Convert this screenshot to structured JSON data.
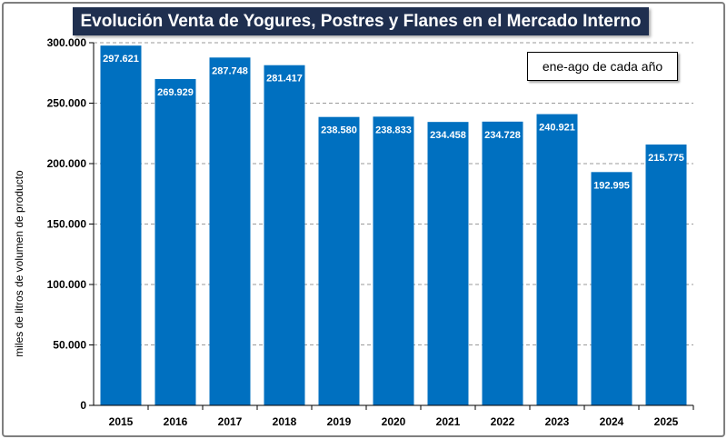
{
  "chart_data": {
    "type": "bar",
    "title": "Evolución Venta de Yogures, Postres y Flanes en el Mercado Interno",
    "period_note": "ene-ago de cada año",
    "ylabel": "miles de litros de volumen de producto",
    "xlabel": "",
    "categories": [
      "2015",
      "2016",
      "2017",
      "2018",
      "2019",
      "2020",
      "2021",
      "2022",
      "2023",
      "2024",
      "2025"
    ],
    "values": [
      297621,
      269929,
      287748,
      281417,
      238580,
      238833,
      234458,
      234728,
      240921,
      192995,
      215775
    ],
    "value_labels": [
      "297.621",
      "269.929",
      "287.748",
      "281.417",
      "238.580",
      "238.833",
      "234.458",
      "234.728",
      "240.921",
      "192.995",
      "215.775"
    ],
    "ylim": [
      0,
      300000
    ],
    "yticks": [
      0,
      50000,
      100000,
      150000,
      200000,
      250000,
      300000
    ],
    "ytick_labels": [
      "0",
      "50.000",
      "100.000",
      "150.000",
      "200.000",
      "250.000",
      "300.000"
    ],
    "grid": true,
    "bar_color": "#0070c0"
  }
}
